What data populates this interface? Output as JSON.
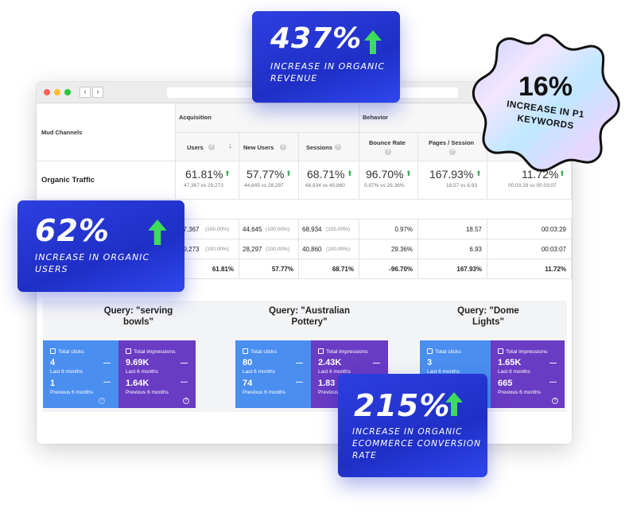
{
  "window": {
    "nav": {
      "back": "‹",
      "forward": "›"
    }
  },
  "table": {
    "row_header": "Mud Channels",
    "groups": {
      "acquisition": "Acquisition",
      "behavior": "Behavior"
    },
    "columns": {
      "users": "Users",
      "new_users": "New Users",
      "sessions": "Sessions",
      "bounce_rate": "Bounce Rate",
      "pages_session": "Pages / Session"
    },
    "organic": {
      "label": "Organic Traffic",
      "users_pct": "61.81%",
      "users_sub": "47,367 vs 29,273",
      "new_users_pct": "57.77%",
      "new_users_sub": "44,645 vs 28,297",
      "sessions_pct": "68.71%",
      "sessions_sub": "68,934 vs 40,860",
      "bounce_pct": "96.70%",
      "bounce_sub": "0.97% vs 29.36%",
      "pages_pct": "167.93%",
      "pages_sub": "18.57 vs 6.93",
      "duration_pct": "11.72%",
      "duration_sub": "00:03:29 vs 00:03:07"
    },
    "rows": [
      {
        "users": "47,367",
        "users_share": "(100.00%)",
        "new_users": "44,645",
        "new_users_share": "(100.00%)",
        "sessions": "68,934",
        "sessions_share": "(100.00%)",
        "bounce": "0.97%",
        "pages": "18.57",
        "duration": "00:03:29"
      },
      {
        "users": "29,273",
        "users_share": "(100.00%)",
        "new_users": "28,297",
        "new_users_share": "(100.00%)",
        "sessions": "40,860",
        "sessions_share": "(100.00%)",
        "bounce": "29.36%",
        "pages": "6.93",
        "duration": "00:03:07"
      }
    ],
    "change_row": {
      "users": "61.81%",
      "new_users": "57.77%",
      "sessions": "68.71%",
      "bounce": "-96.70%",
      "pages": "167.93%",
      "duration": "11.72%"
    }
  },
  "queries": [
    {
      "title_line1": "Query: \"serving",
      "title_line2": "bowls\"",
      "clicks_label": "Total clicks",
      "clicks_now": "4",
      "clicks_prev": "1",
      "impr_label": "Total impressions",
      "impr_now": "9.69K",
      "impr_prev": "1.64K",
      "now_label": "Last 6 months",
      "prev_label": "Previous 6 months"
    },
    {
      "title_line1": "Query: \"Australian",
      "title_line2": "Pottery\"",
      "clicks_label": "Total clicks",
      "clicks_now": "80",
      "clicks_prev": "74",
      "impr_label": "Total impressions",
      "impr_now": "2.43K",
      "impr_prev": "1.83",
      "now_label": "Last 6 months",
      "prev_label": "Previous 6 months"
    },
    {
      "title_line1": "Query: \"Dome",
      "title_line2": "Lights\"",
      "clicks_label": "Total clicks",
      "clicks_now": "3",
      "clicks_prev": "",
      "impr_label": "Total impressions",
      "impr_now": "1.65K",
      "impr_prev": "665",
      "now_label": "Last 6 months",
      "prev_label": "Previous 6 months"
    }
  ],
  "callouts": {
    "revenue": {
      "value": "437%",
      "text_line1": "Increase in organic",
      "text_line2": "revenue"
    },
    "users": {
      "value": "62%",
      "text_line1": "Increase in organic",
      "text_line2": "users"
    },
    "conversion": {
      "value": "215%",
      "text_line1": "Increase in organic",
      "text_line2": "ecommerce conversion",
      "text_line3": "rate"
    }
  },
  "badge": {
    "value": "16%",
    "line1": "INCREASE IN P1",
    "line2": "KEYWORDS"
  },
  "colors": {
    "callout_blue": "#2233d6",
    "arrow_green": "#3ddc5a",
    "clicks_blue": "#4a8ef0",
    "impressions_purple": "#6a3bc3",
    "up_green": "#34a853"
  }
}
